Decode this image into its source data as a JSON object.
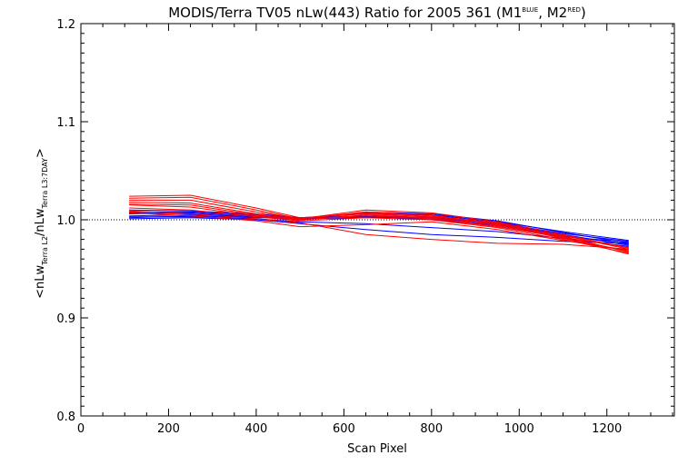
{
  "chart_data": {
    "type": "line",
    "title": {
      "prefix": "MODIS/Terra TV05 nLw(443) Ratio for 2005 361 (M1",
      "sup1": "BLUE",
      "middle": ", M2",
      "sup2": "RED",
      "suffix": ")"
    },
    "xlabel": "Scan Pixel",
    "ylabel": {
      "open": "<nLw",
      "sub1": "Terra L2",
      "mid": "/nLw",
      "sub2": "Terra L3:7DAY",
      "close": ">"
    },
    "xlim": [
      0,
      1354
    ],
    "ylim": [
      0.8,
      1.2
    ],
    "x_ticks": [
      0,
      200,
      400,
      600,
      800,
      1000,
      1200
    ],
    "y_ticks": [
      0.8,
      0.9,
      1.0,
      1.1,
      1.2
    ],
    "y_tick_labels": [
      "0.8",
      "0.9",
      "1.0",
      "1.1",
      "1.2"
    ],
    "reference_line": 1.0,
    "series": [
      {
        "color": "#0000ff",
        "x": [
          110,
          250,
          400,
          500,
          650,
          800,
          950,
          1100,
          1250
        ],
        "y": [
          1.01,
          1.009,
          1.006,
          1.002,
          1.004,
          1.002,
          0.996,
          0.985,
          0.974
        ]
      },
      {
        "color": "#0000ff",
        "x": [
          110,
          250,
          400,
          500,
          650,
          800,
          950,
          1100,
          1250
        ],
        "y": [
          1.008,
          1.008,
          1.005,
          1.002,
          1.003,
          1.001,
          0.995,
          0.984,
          0.975
        ]
      },
      {
        "color": "#0000ff",
        "x": [
          110,
          250,
          400,
          500,
          650,
          800,
          950,
          1100,
          1250
        ],
        "y": [
          1.006,
          1.007,
          1.004,
          1.001,
          1.004,
          1.0,
          0.994,
          0.983,
          0.977
        ]
      },
      {
        "color": "#0000ff",
        "x": [
          110,
          250,
          400,
          500,
          650,
          800,
          950,
          1100,
          1250
        ],
        "y": [
          1.004,
          1.005,
          1.003,
          1.001,
          1.002,
          1.003,
          0.997,
          0.986,
          0.978
        ]
      },
      {
        "color": "#0000ff",
        "x": [
          110,
          250,
          400,
          500,
          650,
          800,
          950,
          1100,
          1250
        ],
        "y": [
          1.002,
          1.004,
          1.002,
          1.002,
          1.006,
          1.005,
          0.998,
          0.988,
          0.979
        ]
      },
      {
        "color": "#0000ff",
        "x": [
          110,
          250,
          400,
          500,
          650,
          800,
          950,
          1100,
          1250
        ],
        "y": [
          1.001,
          1.002,
          1.0,
          0.996,
          0.99,
          0.985,
          0.982,
          0.978,
          0.976
        ]
      },
      {
        "color": "#0000ff",
        "x": [
          110,
          250,
          400,
          500,
          650,
          800,
          950,
          1100,
          1250
        ],
        "y": [
          1.003,
          1.003,
          1.001,
          0.998,
          0.996,
          0.992,
          0.988,
          0.981,
          0.973
        ]
      },
      {
        "color": "#0000ff",
        "x": [
          110,
          250,
          400,
          500,
          650,
          800,
          950,
          1100,
          1250
        ],
        "y": [
          1.007,
          1.006,
          1.003,
          1.0,
          1.008,
          1.006,
          0.999,
          0.987,
          0.976
        ]
      },
      {
        "color": "#ff0000",
        "x": [
          110,
          250,
          400,
          500,
          650,
          800,
          950,
          1100,
          1250
        ],
        "y": [
          1.024,
          1.025,
          1.012,
          1.002,
          1.006,
          1.003,
          0.996,
          0.982,
          0.965
        ]
      },
      {
        "color": "#ff0000",
        "x": [
          110,
          250,
          400,
          500,
          650,
          800,
          950,
          1100,
          1250
        ],
        "y": [
          1.022,
          1.023,
          1.01,
          1.001,
          1.007,
          1.004,
          0.997,
          0.983,
          0.967
        ]
      },
      {
        "color": "#ff0000",
        "x": [
          110,
          250,
          400,
          500,
          650,
          800,
          950,
          1100,
          1250
        ],
        "y": [
          1.02,
          1.02,
          1.008,
          1.001,
          1.008,
          1.005,
          0.995,
          0.981,
          0.968
        ]
      },
      {
        "color": "#ff0000",
        "x": [
          110,
          250,
          400,
          500,
          650,
          800,
          950,
          1100,
          1250
        ],
        "y": [
          1.018,
          1.017,
          1.006,
          1.0,
          1.005,
          1.002,
          0.994,
          0.984,
          0.97
        ]
      },
      {
        "color": "#ff0000",
        "x": [
          110,
          250,
          400,
          500,
          650,
          800,
          950,
          1100,
          1250
        ],
        "y": [
          1.015,
          1.013,
          1.004,
          1.0,
          1.004,
          1.001,
          0.993,
          0.982,
          0.972
        ]
      },
      {
        "color": "#ff0000",
        "x": [
          110,
          250,
          400,
          500,
          650,
          800,
          950,
          1100,
          1250
        ],
        "y": [
          1.012,
          1.01,
          1.003,
          0.999,
          1.002,
          1.0,
          0.992,
          0.98,
          0.966
        ]
      },
      {
        "color": "#ff0000",
        "x": [
          110,
          250,
          400,
          500,
          650,
          800,
          950,
          1100,
          1250
        ],
        "y": [
          1.009,
          1.006,
          1.001,
          0.997,
          0.985,
          0.98,
          0.976,
          0.975,
          0.97
        ]
      },
      {
        "color": "#ff0000",
        "x": [
          110,
          250,
          400,
          500,
          650,
          800,
          950,
          1100,
          1250
        ],
        "y": [
          1.007,
          1.004,
          0.999,
          0.993,
          0.995,
          0.998,
          0.99,
          0.979,
          0.969
        ]
      },
      {
        "color": "#ff0000",
        "x": [
          110,
          250,
          400,
          500,
          650,
          800,
          950,
          1100,
          1250
        ],
        "y": [
          1.016,
          1.015,
          1.005,
          1.001,
          1.01,
          1.007,
          0.998,
          0.985,
          0.971
        ]
      }
    ]
  }
}
